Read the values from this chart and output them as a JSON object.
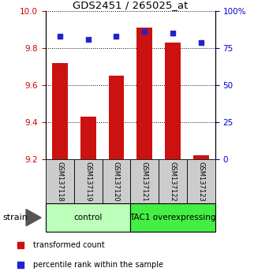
{
  "title": "GDS2451 / 265025_at",
  "samples": [
    "GSM137118",
    "GSM137119",
    "GSM137120",
    "GSM137121",
    "GSM137122",
    "GSM137123"
  ],
  "red_values": [
    9.72,
    9.43,
    9.65,
    9.91,
    9.83,
    9.22
  ],
  "blue_values": [
    83,
    81,
    83,
    86,
    85,
    79
  ],
  "y_min": 9.2,
  "y_max": 10.0,
  "y_ticks": [
    9.2,
    9.4,
    9.6,
    9.8,
    10.0
  ],
  "y2_ticks": [
    0,
    25,
    50,
    75,
    100
  ],
  "y2_labels": [
    "0",
    "25",
    "50",
    "75",
    "100%"
  ],
  "groups": [
    {
      "label": "control",
      "indices": [
        0,
        1,
        2
      ],
      "color": "#bbffbb"
    },
    {
      "label": "TAC1 overexpressing",
      "indices": [
        3,
        4,
        5
      ],
      "color": "#44ee44"
    }
  ],
  "bar_color": "#cc1111",
  "dot_color": "#2222cc",
  "bar_width": 0.55,
  "legend_red": "transformed count",
  "legend_blue": "percentile rank within the sample",
  "strain_label": "strain",
  "left_tick_color": "#cc0000",
  "right_tick_color": "#0000cc",
  "sample_box_color": "#cccccc",
  "bg_color": "#ffffff"
}
